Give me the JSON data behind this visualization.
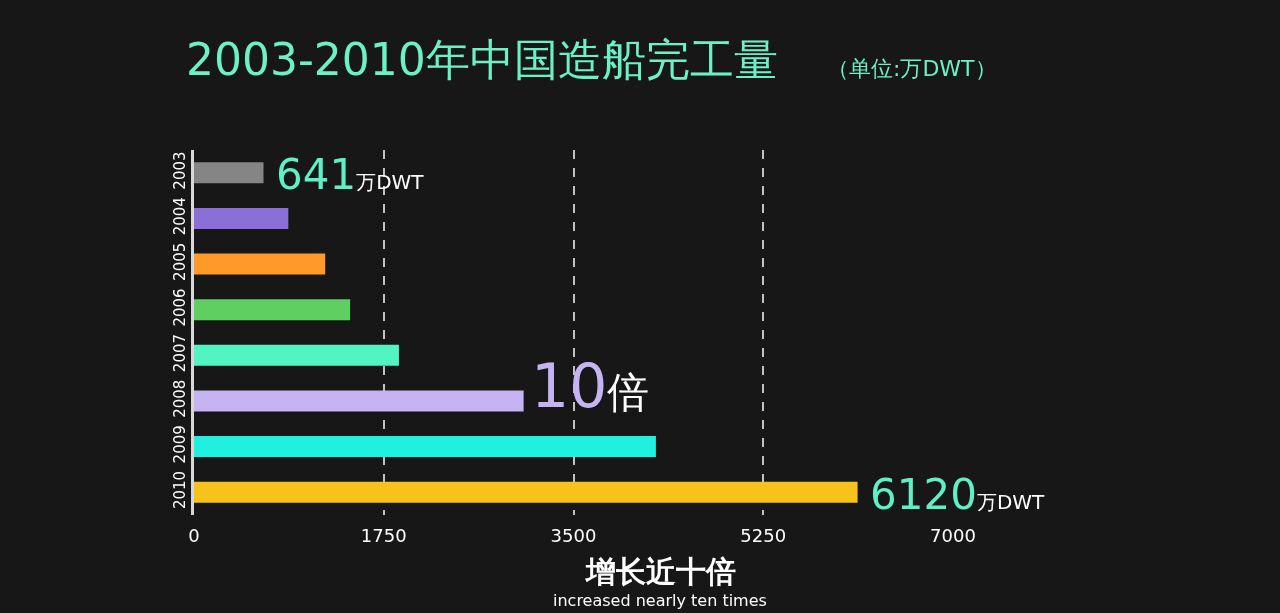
{
  "chart_data": {
    "type": "bar",
    "orientation": "horizontal",
    "title": "2003-2010年中国造船完工量",
    "subtitle": "（单位:万DWT）",
    "categories": [
      "2003",
      "2004",
      "2005",
      "2006",
      "2007",
      "2008",
      "2009",
      "2010"
    ],
    "values": [
      641,
      870,
      1210,
      1440,
      1890,
      3040,
      4260,
      6120
    ],
    "colors": [
      "#858585",
      "#8a6fd8",
      "#ff9a2a",
      "#5fcf62",
      "#52f5c2",
      "#c6b4f2",
      "#1ff0df",
      "#f7c21a"
    ],
    "value_labels": [
      "641万DWT",
      null,
      null,
      null,
      null,
      null,
      null,
      "6120万DWT"
    ],
    "xlim": [
      0,
      7000
    ],
    "xticks": [
      0,
      1750,
      3500,
      5250,
      7000
    ],
    "grid": "x",
    "annotations": [
      "10倍",
      "增长近十倍",
      "increased nearly ten times"
    ]
  }
}
